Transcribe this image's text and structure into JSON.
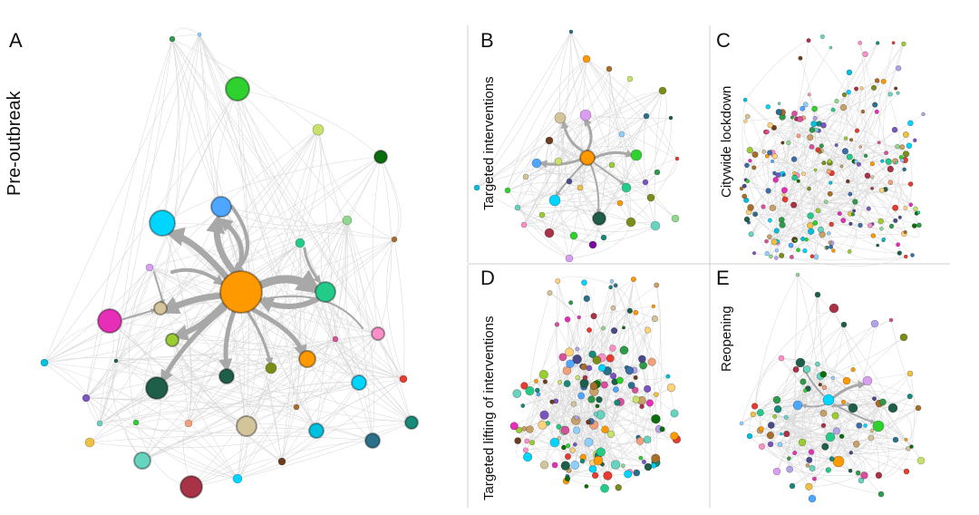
{
  "panels": {
    "a": {
      "letter": "A",
      "title": "Pre-outbreak"
    },
    "b": {
      "letter": "B",
      "title": "Targeted interventions"
    },
    "c": {
      "letter": "C",
      "title": "Citywide lockdown"
    },
    "d": {
      "letter": "D",
      "title": "Targeted lifting of interventions"
    },
    "e": {
      "letter": "E",
      "title": "Reopening"
    }
  },
  "colors": {
    "edge_light": "#d8d8d8",
    "edge_heavy": "#a8a8a8",
    "divider": "#cfcfcf",
    "hub_orange": "#ff9900"
  }
}
